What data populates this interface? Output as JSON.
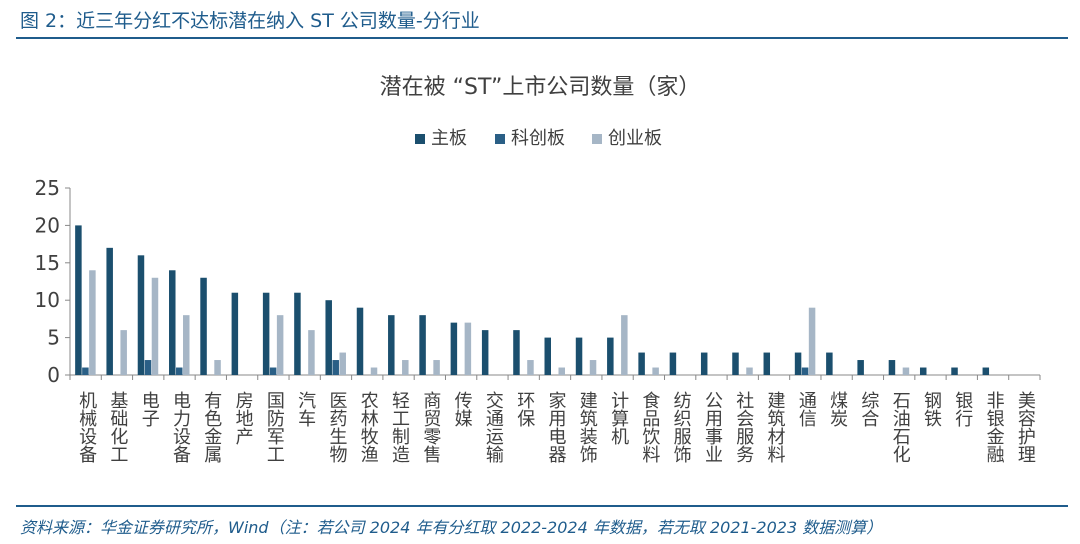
{
  "figure": {
    "title": "图 2：近三年分红不达标潜在纳入 ST 公司数量-分行业",
    "source": "资料来源：华金证券研究所，Wind（注：若公司 2024 年有分红取 2022-2024 年数据，若无取 2021-2023 数据测算）"
  },
  "colors": {
    "brand": "#1f5c8c",
    "main_board": "#1b4f6e",
    "star_market": "#2a5f86",
    "chinext": "#a6b6c6",
    "axis": "#888888",
    "text": "#404040"
  },
  "chart_data": {
    "type": "bar",
    "title": "潜在被 “ST”上市公司数量（家）",
    "xlabel": "",
    "ylabel": "",
    "ylim": [
      0,
      25
    ],
    "yticks": [
      0,
      5,
      10,
      15,
      20,
      25
    ],
    "grid": false,
    "legend_position": "top-center",
    "categories": [
      "机械设备",
      "基础化工",
      "电子",
      "电力设备",
      "有色金属",
      "房地产",
      "国防军工",
      "汽车",
      "医药生物",
      "农林牧渔",
      "轻工制造",
      "商贸零售",
      "传媒",
      "交通运输",
      "环保",
      "家用电器",
      "建筑装饰",
      "计算机",
      "食品饮料",
      "纺织服饰",
      "公用事业",
      "社会服务",
      "建筑材料",
      "通信",
      "煤炭",
      "综合",
      "石油石化",
      "钢铁",
      "银行",
      "非银金融",
      "美容护理"
    ],
    "series": [
      {
        "name": "主板",
        "color": "#1b4f6e",
        "values": [
          20,
          17,
          16,
          14,
          13,
          11,
          11,
          11,
          10,
          9,
          8,
          8,
          7,
          6,
          6,
          5,
          5,
          5,
          3,
          3,
          3,
          3,
          3,
          3,
          3,
          2,
          2,
          1,
          1,
          1,
          0
        ]
      },
      {
        "name": "科创板",
        "color": "#2a5f86",
        "values": [
          1,
          0,
          2,
          1,
          0,
          0,
          1,
          0,
          2,
          0,
          0,
          0,
          0,
          0,
          0,
          0,
          0,
          0,
          0,
          0,
          0,
          0,
          0,
          1,
          0,
          0,
          0,
          0,
          0,
          0,
          0
        ]
      },
      {
        "name": "创业板",
        "color": "#a6b6c6",
        "values": [
          14,
          6,
          13,
          8,
          2,
          0,
          8,
          6,
          3,
          1,
          2,
          2,
          7,
          0,
          2,
          1,
          2,
          8,
          1,
          0,
          0,
          1,
          0,
          9,
          0,
          0,
          1,
          0,
          0,
          0,
          0
        ]
      }
    ]
  }
}
